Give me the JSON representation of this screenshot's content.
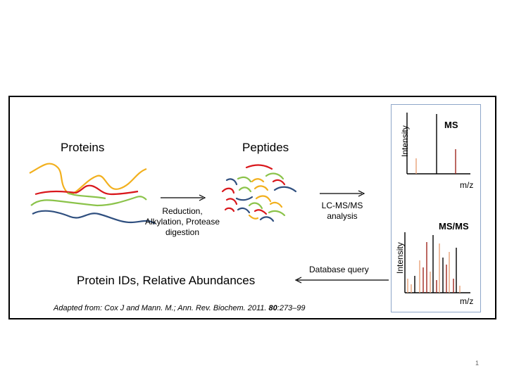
{
  "labels": {
    "proteins": "Proteins",
    "peptides": "Peptides",
    "step1_line1": "Reduction,",
    "step1_line2": "Alkylation, Protease",
    "step1_line3": "digestion",
    "step2_line1": "LC-MS/MS",
    "step2_line2": "analysis",
    "database_query": "Database query",
    "result": "Protein IDs, Relative Abundances"
  },
  "caption": {
    "prefix": "Adapted from: Cox J and Mann. M.; Ann. Rev. Biochem. 2011. ",
    "volume": "80",
    "pages": ":273–99"
  },
  "ms_panel": {
    "ms_title": "MS",
    "msms_title": "MS/MS",
    "ylabel": "Intensity",
    "xlabel": "m/z"
  },
  "page_number": "1",
  "colors": {
    "yellow": "#f2b01e",
    "red": "#d9171c",
    "green": "#8bc34a",
    "blue": "#2f4f7f",
    "orange_peak": "#e8a178",
    "dark_red_peak": "#a0281e"
  }
}
